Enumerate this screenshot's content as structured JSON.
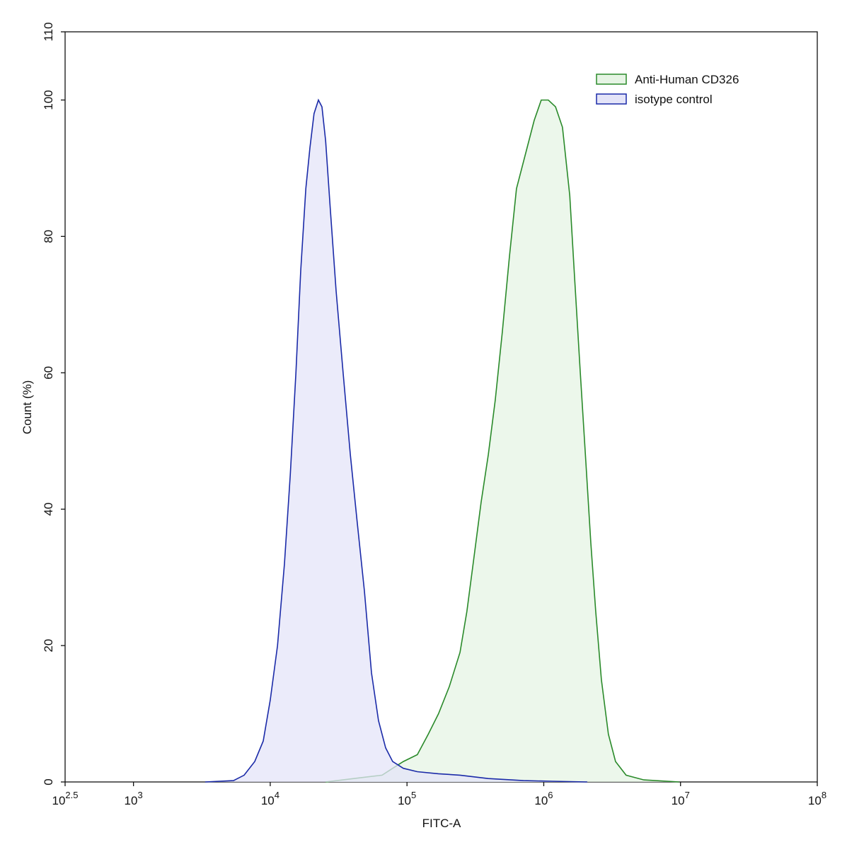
{
  "chart_data": {
    "type": "histogram-overlay",
    "xlabel": "FITC-A",
    "ylabel": "Count  (%)",
    "xscale": "log",
    "xlim": [
      316.227766,
      100000000
    ],
    "xticks": [
      {
        "value": 316.227766,
        "label": "10",
        "sup": "2.5"
      },
      {
        "value": 1000,
        "label": "10",
        "sup": "3"
      },
      {
        "value": 10000,
        "label": "10",
        "sup": "4"
      },
      {
        "value": 100000,
        "label": "10",
        "sup": "5"
      },
      {
        "value": 1000000,
        "label": "10",
        "sup": "6"
      },
      {
        "value": 10000000,
        "label": "10",
        "sup": "7"
      },
      {
        "value": 100000000,
        "label": "10",
        "sup": "8"
      }
    ],
    "ylim": [
      0,
      110
    ],
    "yticks": [
      0,
      20,
      40,
      60,
      80,
      100,
      110
    ],
    "legend": "upper right",
    "series": [
      {
        "name": "Anti-Human CD326",
        "color": "#2a8a2a",
        "fill": "#e6f4e4",
        "x": [
          25400,
          40800,
          65800,
          78500,
          94000,
          119000,
          143000,
          170000,
          204000,
          244000,
          274000,
          309000,
          348000,
          393000,
          442000,
          498000,
          561000,
          632000,
          755000,
          851000,
          959000,
          1080000,
          1220000,
          1370000,
          1550000,
          1680000,
          1850000,
          2030000,
          2210000,
          2400000,
          2640000,
          2970000,
          3350000,
          4000000,
          5390000,
          9770000
        ],
        "values": [
          0,
          0.5,
          1,
          2,
          3,
          4,
          7,
          10,
          14,
          19,
          25,
          33,
          41,
          48,
          56,
          66,
          77,
          87,
          93,
          97,
          100,
          100,
          99,
          96,
          86,
          74,
          60,
          47,
          35,
          25,
          15,
          7,
          3,
          1,
          0.3,
          0
        ]
      },
      {
        "name": "isotype control",
        "color": "#1a2aa8",
        "fill": "#e4e4f8",
        "x": [
          3340,
          5390,
          6440,
          7700,
          8890,
          10000,
          11300,
          12700,
          14000,
          15400,
          16700,
          18200,
          19500,
          20900,
          22500,
          23900,
          25400,
          27500,
          30300,
          34100,
          38500,
          43300,
          48800,
          55000,
          61900,
          69800,
          78500,
          94000,
          119000,
          170000,
          244000,
          393000,
          711000,
          1150000,
          2080000
        ],
        "values": [
          0,
          0.2,
          1,
          3,
          6,
          12,
          20,
          32,
          45,
          60,
          75,
          87,
          93,
          98,
          100,
          99,
          94,
          84,
          72,
          60,
          48,
          38,
          28,
          16,
          9,
          5,
          3,
          2,
          1.5,
          1.2,
          1,
          0.5,
          0.2,
          0.1,
          0
        ]
      }
    ]
  }
}
